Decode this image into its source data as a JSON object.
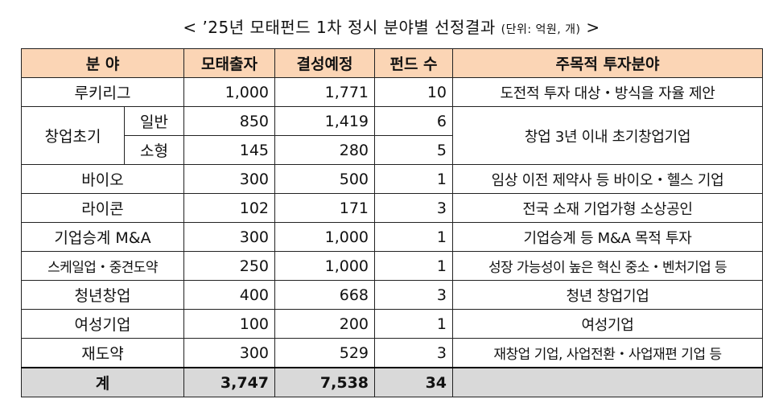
{
  "title": {
    "main": "< ’25년 모태펀드 1차 정시 분야별 선정결과",
    "unit": "(단위: 억원, 개)",
    "close": ">"
  },
  "headers": {
    "field": "분 야",
    "mother_fund": "모태출자",
    "planned": "결성예정",
    "fund_count": "펀드 수",
    "focus": "주목적 투자분야"
  },
  "rows": [
    {
      "field": "루키리그",
      "mother_fund": "1,000",
      "planned": "1,771",
      "fund_count": "10",
      "focus": "도전적 투자 대상・방식을 자율 제안"
    },
    {
      "field": "창업초기",
      "sub": "일반",
      "mother_fund": "850",
      "planned": "1,419",
      "fund_count": "6",
      "focus": "창업 3년 이내 초기창업기업"
    },
    {
      "sub": "소형",
      "mother_fund": "145",
      "planned": "280",
      "fund_count": "5"
    },
    {
      "field": "바이오",
      "mother_fund": "300",
      "planned": "500",
      "fund_count": "1",
      "focus": "임상 이전 제약사 등 바이오・헬스 기업"
    },
    {
      "field": "라이콘",
      "mother_fund": "102",
      "planned": "171",
      "fund_count": "3",
      "focus": "전국 소재 기업가형 소상공인"
    },
    {
      "field": "기업승계 M&A",
      "mother_fund": "300",
      "planned": "1,000",
      "fund_count": "1",
      "focus": "기업승계 등 M&A 목적 투자"
    },
    {
      "field": "스케일업・중견도약",
      "mother_fund": "250",
      "planned": "1,000",
      "fund_count": "1",
      "focus": "성장 가능성이 높은 혁신 중소・벤처기업 등"
    },
    {
      "field": "청년창업",
      "mother_fund": "400",
      "planned": "668",
      "fund_count": "3",
      "focus": "청년 창업기업"
    },
    {
      "field": "여성기업",
      "mother_fund": "100",
      "planned": "200",
      "fund_count": "1",
      "focus": "여성기업"
    },
    {
      "field": "재도약",
      "mother_fund": "300",
      "planned": "529",
      "fund_count": "3",
      "focus": "재창업 기업, 사업전환・사업재편 기업 등"
    }
  ],
  "total": {
    "label": "계",
    "mother_fund": "3,747",
    "planned": "7,538",
    "fund_count": "34"
  },
  "colors": {
    "header_bg": "#fbd5b5",
    "total_bg": "#d9d9d9"
  }
}
